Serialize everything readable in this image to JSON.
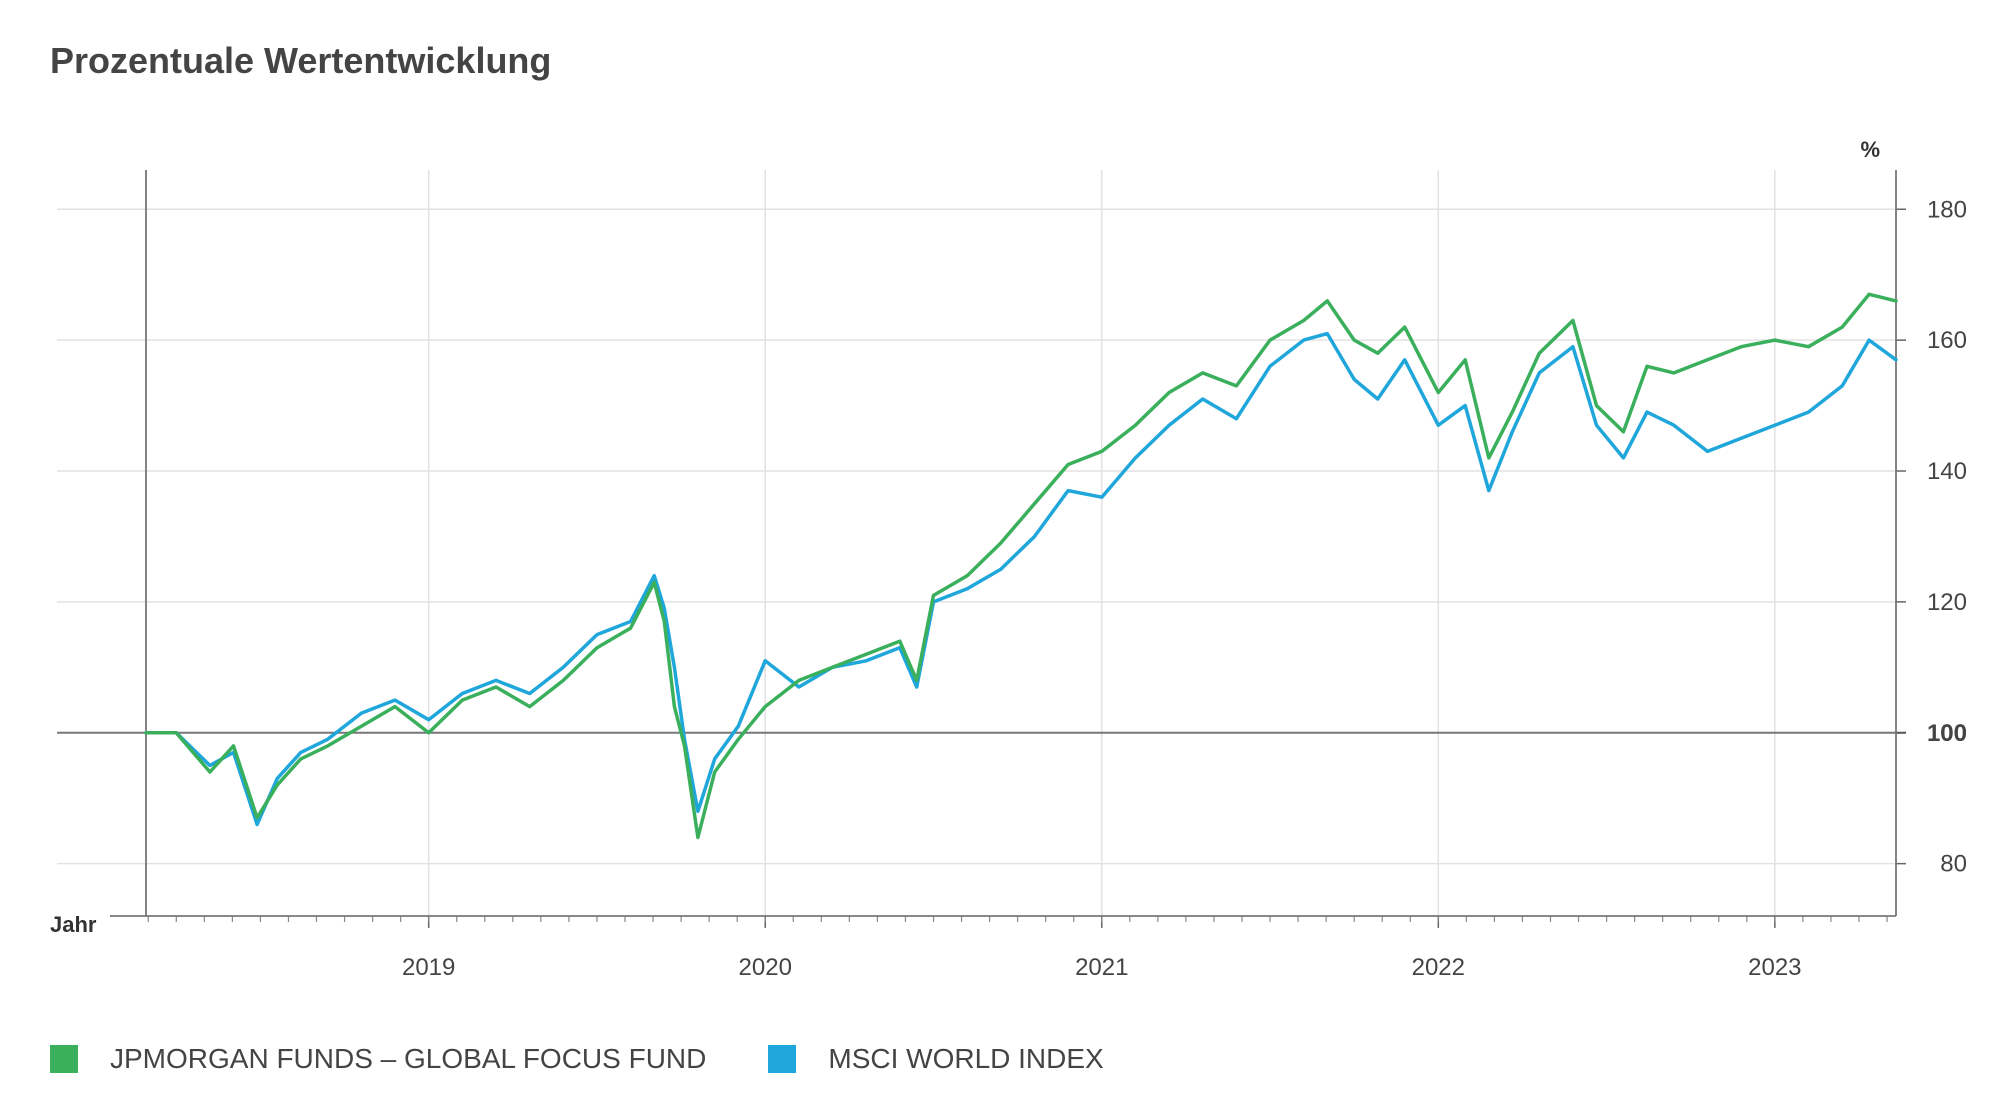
{
  "title": "Prozentuale Wertentwicklung",
  "chart_data": {
    "type": "line",
    "title": "Prozentuale Wertentwicklung",
    "xlabel": "Jahr",
    "ylabel": "%",
    "ylim": [
      72,
      186
    ],
    "xlim": [
      2018.16,
      2023.36
    ],
    "y_ticks": [
      80,
      100,
      120,
      140,
      160,
      180
    ],
    "baseline": 100,
    "x_ticks": [
      "2019",
      "2020",
      "2021",
      "2022",
      "2023"
    ],
    "x_tick_values": [
      2019,
      2020,
      2021,
      2022,
      2023
    ],
    "grid": true,
    "legend_position": "bottom-left",
    "series": [
      {
        "name": "JPMORGAN FUNDS – GLOBAL FOCUS FUND",
        "color": "#3aaf5c",
        "x": [
          2018.16,
          2018.25,
          2018.35,
          2018.42,
          2018.49,
          2018.55,
          2018.62,
          2018.7,
          2018.8,
          2018.9,
          2019.0,
          2019.1,
          2019.2,
          2019.3,
          2019.4,
          2019.5,
          2019.6,
          2019.67,
          2019.7,
          2019.73,
          2019.76,
          2019.8,
          2019.85,
          2019.92,
          2020.0,
          2020.1,
          2020.2,
          2020.3,
          2020.4,
          2020.45,
          2020.5,
          2020.6,
          2020.7,
          2020.8,
          2020.9,
          2021.0,
          2021.1,
          2021.2,
          2021.3,
          2021.4,
          2021.5,
          2021.6,
          2021.67,
          2021.75,
          2021.82,
          2021.9,
          2022.0,
          2022.08,
          2022.15,
          2022.22,
          2022.3,
          2022.4,
          2022.47,
          2022.55,
          2022.62,
          2022.7,
          2022.8,
          2022.9,
          2023.0,
          2023.1,
          2023.2,
          2023.28,
          2023.36
        ],
        "values": [
          100,
          100,
          94,
          98,
          87,
          92,
          96,
          98,
          101,
          104,
          100,
          105,
          107,
          104,
          108,
          113,
          116,
          123,
          117,
          104,
          98,
          84,
          94,
          99,
          104,
          108,
          110,
          112,
          114,
          108,
          121,
          124,
          129,
          135,
          141,
          143,
          147,
          152,
          155,
          153,
          160,
          163,
          166,
          160,
          158,
          162,
          152,
          157,
          142,
          149,
          158,
          163,
          150,
          146,
          156,
          155,
          157,
          159,
          160,
          159,
          162,
          167,
          166
        ]
      },
      {
        "name": "MSCI WORLD INDEX",
        "color": "#1fa6db",
        "x": [
          2018.16,
          2018.25,
          2018.35,
          2018.42,
          2018.49,
          2018.55,
          2018.62,
          2018.7,
          2018.8,
          2018.9,
          2019.0,
          2019.1,
          2019.2,
          2019.3,
          2019.4,
          2019.5,
          2019.6,
          2019.67,
          2019.7,
          2019.73,
          2019.76,
          2019.8,
          2019.85,
          2019.92,
          2020.0,
          2020.1,
          2020.2,
          2020.3,
          2020.4,
          2020.45,
          2020.5,
          2020.6,
          2020.7,
          2020.8,
          2020.9,
          2021.0,
          2021.1,
          2021.2,
          2021.3,
          2021.4,
          2021.5,
          2021.6,
          2021.67,
          2021.75,
          2021.82,
          2021.9,
          2022.0,
          2022.08,
          2022.15,
          2022.22,
          2022.3,
          2022.4,
          2022.47,
          2022.55,
          2022.62,
          2022.7,
          2022.8,
          2022.9,
          2023.0,
          2023.1,
          2023.2,
          2023.28,
          2023.36
        ],
        "values": [
          100,
          100,
          95,
          97,
          86,
          93,
          97,
          99,
          103,
          105,
          102,
          106,
          108,
          106,
          110,
          115,
          117,
          124,
          119,
          110,
          99,
          88,
          96,
          101,
          111,
          107,
          110,
          111,
          113,
          107,
          120,
          122,
          125,
          130,
          137,
          136,
          142,
          147,
          151,
          148,
          156,
          160,
          161,
          154,
          151,
          157,
          147,
          150,
          137,
          146,
          155,
          159,
          147,
          142,
          149,
          147,
          143,
          145,
          147,
          149,
          153,
          160,
          157
        ]
      }
    ]
  }
}
